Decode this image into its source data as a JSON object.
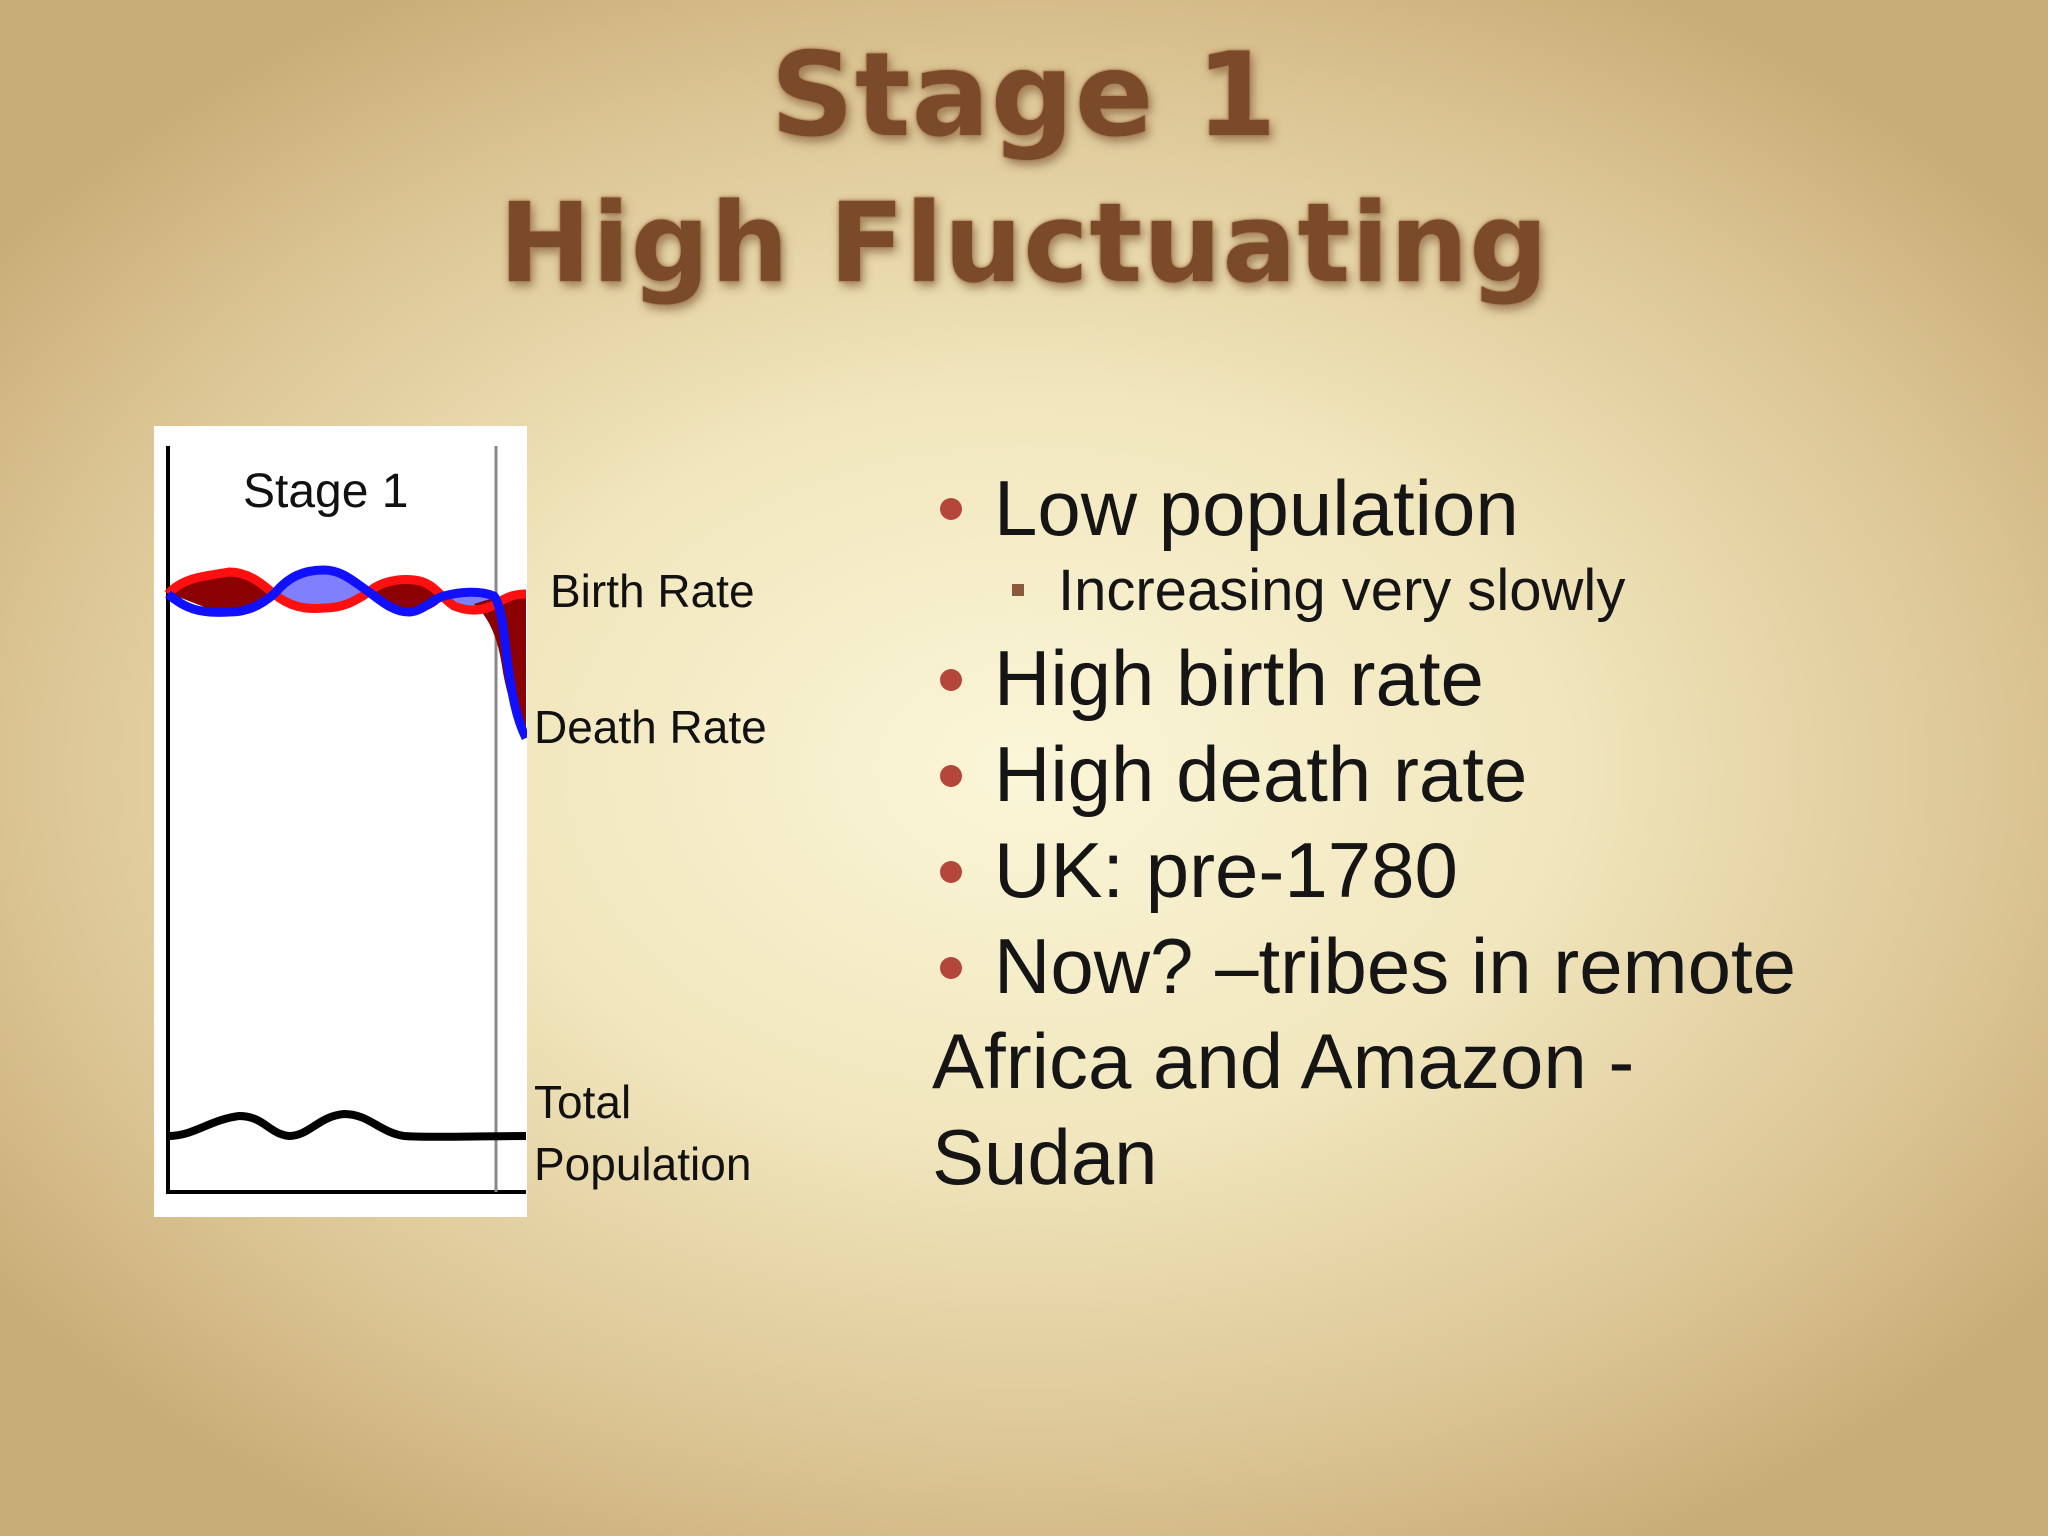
{
  "slide": {
    "title_line1": "Stage 1",
    "title_line2": "High Fluctuating"
  },
  "figure": {
    "stage_label": "Stage 1",
    "birth_rate_label": "Birth Rate",
    "death_rate_label": "Death Rate",
    "population_label_line1": "Total",
    "population_label_line2": "Population",
    "colors": {
      "birth_rate_line": "#ff1010",
      "death_rate_line": "#1010ff",
      "natural_increase_fill": "#8b0000",
      "natural_decrease_fill": "#8080ff",
      "population_line": "#000000"
    }
  },
  "bullets": {
    "item1": "Low population",
    "item1_sub": "Increasing very slowly",
    "item2": "High birth rate",
    "item3": "High death rate",
    "item4": "UK: pre-1780",
    "item5": "Now? –tribes in remote",
    "item5_cont1": "Africa and Amazon -",
    "item5_cont2": "Sudan"
  }
}
